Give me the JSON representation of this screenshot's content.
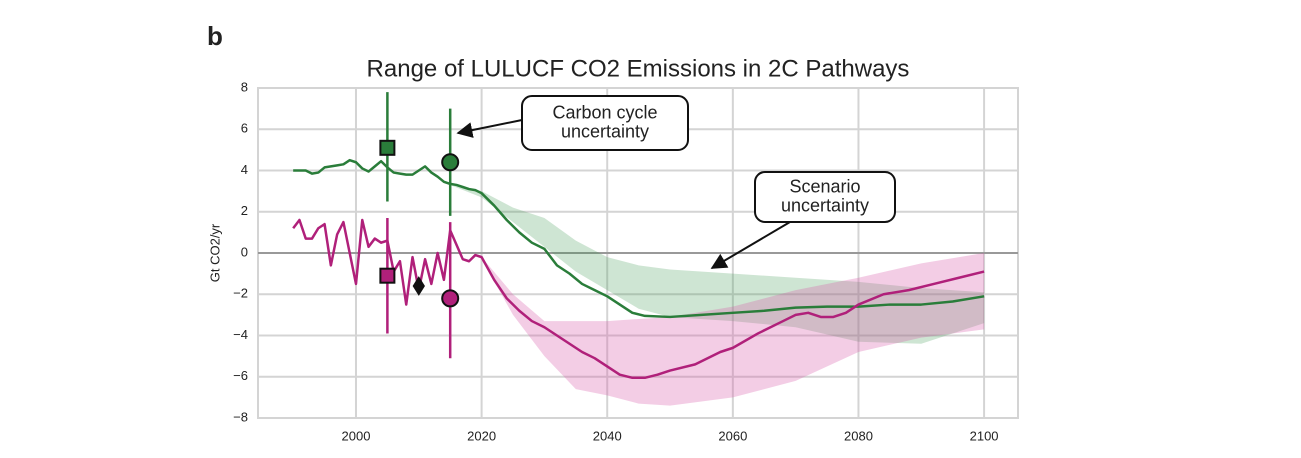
{
  "chart_data": {
    "type": "line",
    "panel_label": "b",
    "title": "Range of LULUCF CO2 Emissions in 2C Pathways",
    "y_label": "Gt CO2/yr",
    "xlim": [
      1984.4,
      2105.4
    ],
    "ylim": [
      -8,
      8
    ],
    "xticks": [
      2000,
      2020,
      2040,
      2060,
      2080,
      2100
    ],
    "yticks": [
      {
        "value": -8,
        "label": "−8"
      },
      {
        "value": -6,
        "label": "−6"
      },
      {
        "value": -4,
        "label": "−4"
      },
      {
        "value": -2,
        "label": "−2"
      },
      0,
      2,
      4,
      6,
      8
    ],
    "grid": true,
    "bands": [
      {
        "color": "rgba(60,150,80,0.25)",
        "x": [
          2015,
          2020,
          2025,
          2030,
          2035,
          2040,
          2045,
          2050,
          2060,
          2070,
          2080,
          2090,
          2100
        ],
        "upper": [
          3.4,
          3.0,
          2.2,
          1.7,
          0.6,
          -0.2,
          -0.6,
          -0.8,
          -1.0,
          -1.2,
          -1.4,
          -1.7,
          -1.9
        ],
        "lower": [
          3.3,
          2.7,
          1.5,
          0.3,
          -0.9,
          -1.8,
          -2.7,
          -3.1,
          -3.3,
          -3.6,
          -4.3,
          -4.4,
          -3.4
        ]
      },
      {
        "color": "rgba(215,90,170,0.3)",
        "x": [
          2020,
          2025,
          2030,
          2035,
          2040,
          2045,
          2050,
          2060,
          2070,
          2080,
          2090,
          2100
        ],
        "upper": [
          -0.2,
          -2.0,
          -3.3,
          -3.3,
          -3.3,
          -3.2,
          -3.1,
          -2.6,
          -1.8,
          -1.2,
          -0.5,
          0.0
        ],
        "lower": [
          -0.3,
          -3.0,
          -5.0,
          -6.6,
          -6.9,
          -7.3,
          -7.4,
          -7.0,
          -6.2,
          -4.8,
          -4.1,
          -3.7
        ]
      }
    ],
    "series": [
      {
        "color": "#2a7d3a",
        "x": [
          1990,
          1991,
          1992,
          1993,
          1994,
          1995,
          1996,
          1997,
          1998,
          1999,
          2000,
          2001,
          2002,
          2003,
          2004,
          2005,
          2006,
          2007,
          2008,
          2009,
          2010,
          2011,
          2012,
          2013,
          2014,
          2015,
          2016,
          2017,
          2018,
          2019,
          2020,
          2022,
          2024,
          2026,
          2028,
          2030,
          2032,
          2034,
          2036,
          2038,
          2040,
          2042,
          2044,
          2046,
          2050,
          2055,
          2060,
          2065,
          2070,
          2075,
          2080,
          2085,
          2090,
          2095,
          2100
        ],
        "values": [
          4.0,
          4.0,
          4.0,
          3.85,
          3.9,
          4.15,
          4.2,
          4.25,
          4.3,
          4.5,
          4.4,
          4.1,
          3.95,
          4.2,
          4.45,
          4.15,
          3.9,
          3.85,
          3.8,
          3.8,
          4.0,
          4.2,
          3.9,
          3.7,
          3.45,
          3.35,
          3.3,
          3.2,
          3.1,
          3.05,
          2.9,
          2.3,
          1.6,
          1.0,
          0.5,
          0.2,
          -0.6,
          -1.0,
          -1.5,
          -1.8,
          -2.1,
          -2.5,
          -2.9,
          -3.05,
          -3.1,
          -3.0,
          -2.9,
          -2.8,
          -2.65,
          -2.6,
          -2.6,
          -2.5,
          -2.5,
          -2.35,
          -2.1
        ]
      },
      {
        "color": "#b0207a",
        "x": [
          1990,
          1991,
          1992,
          1993,
          1994,
          1995,
          1996,
          1997,
          1998,
          1999,
          2000,
          2001,
          2002,
          2003,
          2004,
          2005,
          2006,
          2007,
          2008,
          2009,
          2010,
          2011,
          2012,
          2013,
          2014,
          2015,
          2016,
          2017,
          2018,
          2019,
          2020,
          2022,
          2024,
          2026,
          2028,
          2030,
          2032,
          2034,
          2036,
          2038,
          2040,
          2042,
          2044,
          2046,
          2048,
          2050,
          2054,
          2058,
          2060,
          2064,
          2068,
          2070,
          2072,
          2074,
          2076,
          2078,
          2080,
          2084,
          2088,
          2092,
          2096,
          2100
        ],
        "values": [
          1.2,
          1.6,
          0.7,
          0.7,
          1.2,
          1.4,
          -0.6,
          0.9,
          1.5,
          0.0,
          -1.5,
          1.6,
          0.3,
          0.7,
          0.5,
          0.6,
          -0.9,
          -0.4,
          -2.5,
          -0.2,
          -1.8,
          -0.3,
          -1.5,
          0.0,
          -1.3,
          1.1,
          0.4,
          -0.3,
          -0.4,
          -0.1,
          -0.2,
          -1.3,
          -2.2,
          -2.8,
          -3.3,
          -3.6,
          -4.0,
          -4.4,
          -4.8,
          -5.1,
          -5.5,
          -5.9,
          -6.05,
          -6.05,
          -5.9,
          -5.7,
          -5.4,
          -4.8,
          -4.6,
          -3.9,
          -3.3,
          -3.0,
          -2.9,
          -3.1,
          -3.1,
          -2.9,
          -2.5,
          -2.0,
          -1.8,
          -1.5,
          -1.2,
          -0.9
        ]
      }
    ],
    "points": [
      {
        "x": 2005,
        "y": 5.1,
        "low": 2.5,
        "high": 7.8,
        "color": "#2a7d3a",
        "shape": "square"
      },
      {
        "x": 2015,
        "y": 4.4,
        "low": 1.8,
        "high": 7.0,
        "color": "#2a7d3a",
        "shape": "circle"
      },
      {
        "x": 2005,
        "y": -1.1,
        "low": -3.9,
        "high": 1.7,
        "color": "#b0207a",
        "shape": "square"
      },
      {
        "x": 2015,
        "y": -2.2,
        "low": -5.1,
        "high": 1.5,
        "color": "#b0207a",
        "shape": "circle"
      },
      {
        "x": 2010,
        "y": -1.6,
        "color": "#111111",
        "shape": "diamond"
      }
    ],
    "annotations": [
      {
        "lines": [
          "Carbon cycle",
          "uncertainty"
        ]
      },
      {
        "lines": [
          "Scenario",
          "uncertainty"
        ]
      }
    ]
  }
}
